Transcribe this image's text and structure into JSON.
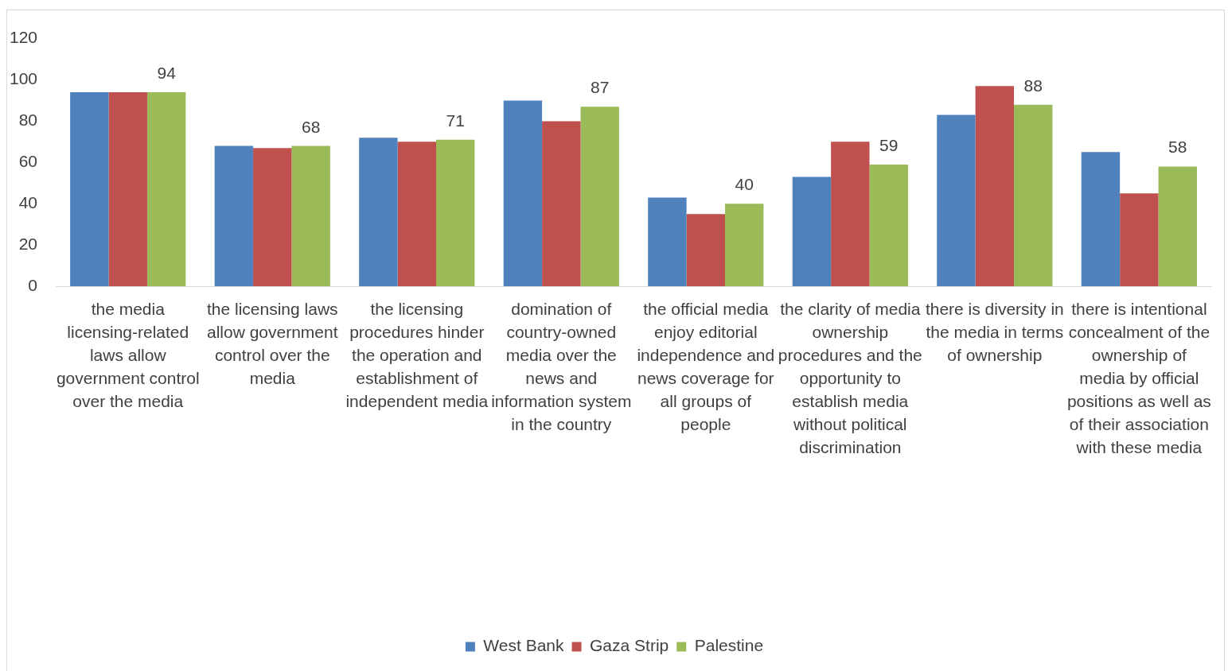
{
  "chart_data": {
    "type": "bar",
    "categories": [
      "the media licensing-related laws allow government control over the media",
      "the licensing laws allow government control over the media",
      "the licensing procedures hinder the operation and establishment of independent media",
      "domination of country-owned media over the news and information system in the country",
      "the official media enjoy editorial independence and news coverage for all groups of people",
      "the clarity of media ownership procedures and the opportunity to establish media without political discrimination",
      "there is diversity in the media in terms of ownership",
      "there is intentional concealment of the ownership of media by official positions as well as of their association with these media"
    ],
    "series": [
      {
        "name": "West Bank",
        "color": "#4f81bd",
        "values": [
          94,
          68,
          72,
          90,
          43,
          53,
          83,
          65
        ]
      },
      {
        "name": "Gaza Strip",
        "color": "#c0504d",
        "values": [
          94,
          67,
          70,
          80,
          35,
          70,
          97,
          45
        ]
      },
      {
        "name": "Palestine",
        "color": "#9bbb59",
        "values": [
          94,
          68,
          71,
          87,
          40,
          59,
          88,
          58
        ],
        "value_labels": [
          "94",
          "68",
          "71",
          "87",
          "40",
          "59",
          "88",
          "58"
        ]
      }
    ],
    "ylim": [
      0,
      120
    ],
    "yticks": [
      0,
      20,
      40,
      60,
      80,
      100,
      120
    ],
    "grid": false,
    "legend": "bottom"
  }
}
